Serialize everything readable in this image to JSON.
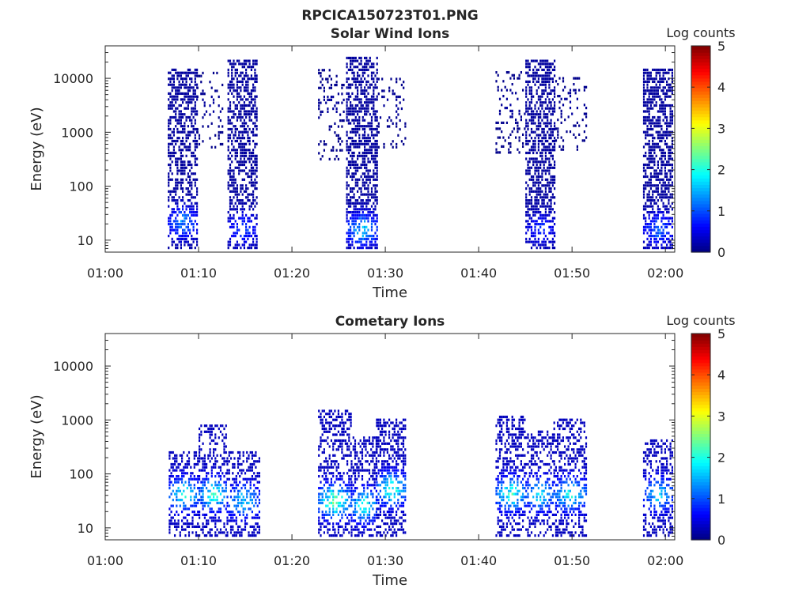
{
  "figure_title": "RPCICA150723T01.PNG",
  "chart_data": [
    {
      "type": "heatmap",
      "title": "Solar Wind Ions",
      "xlabel": "Time",
      "ylabel": "Energy (eV)",
      "x_ticks": [
        "01:00",
        "01:10",
        "01:20",
        "01:30",
        "01:40",
        "01:50",
        "02:00"
      ],
      "x_range_minutes": [
        0,
        61
      ],
      "y_scale": "log",
      "y_ticks": [
        "10",
        "100",
        "1000",
        "10000"
      ],
      "y_range": [
        6,
        40000
      ],
      "colorbar": {
        "label": "Log counts",
        "ticks": [
          "0",
          "1",
          "2",
          "3",
          "4",
          "5"
        ],
        "range": [
          0,
          5
        ],
        "colormap": "jet"
      },
      "bursts": [
        {
          "t0": 6.7,
          "t1": 9.8,
          "emin": 6,
          "emax": 15000,
          "density": 0.55,
          "peak_e": 20,
          "peak_val": 1.6,
          "base_val": 0.15
        },
        {
          "t0": 9.8,
          "t1": 12.6,
          "emin": 500,
          "emax": 15000,
          "density": 0.12,
          "peak_e": 3000,
          "peak_val": 0.2,
          "base_val": 0.05
        },
        {
          "t0": 13.1,
          "t1": 16.2,
          "emin": 6,
          "emax": 20000,
          "density": 0.55,
          "peak_e": 15,
          "peak_val": 1.2,
          "base_val": 0.15
        },
        {
          "t0": 22.8,
          "t1": 25.6,
          "emin": 300,
          "emax": 15000,
          "density": 0.18,
          "peak_e": 3000,
          "peak_val": 0.2,
          "base_val": 0.05
        },
        {
          "t0": 25.8,
          "t1": 29.2,
          "emin": 6,
          "emax": 25000,
          "density": 0.6,
          "peak_e": 15,
          "peak_val": 2.0,
          "base_val": 0.15
        },
        {
          "t0": 29.2,
          "t1": 32.2,
          "emin": 500,
          "emax": 10000,
          "density": 0.15,
          "peak_e": 3000,
          "peak_val": 0.2,
          "base_val": 0.05
        },
        {
          "t0": 41.8,
          "t1": 45.0,
          "emin": 400,
          "emax": 15000,
          "density": 0.18,
          "peak_e": 3000,
          "peak_val": 0.2,
          "base_val": 0.05
        },
        {
          "t0": 45.0,
          "t1": 48.2,
          "emin": 6,
          "emax": 20000,
          "density": 0.6,
          "peak_e": 15,
          "peak_val": 1.0,
          "base_val": 0.15
        },
        {
          "t0": 48.2,
          "t1": 51.5,
          "emin": 400,
          "emax": 10000,
          "density": 0.15,
          "peak_e": 3000,
          "peak_val": 0.2,
          "base_val": 0.05
        },
        {
          "t0": 57.6,
          "t1": 60.8,
          "emin": 6,
          "emax": 15000,
          "density": 0.6,
          "peak_e": 15,
          "peak_val": 1.4,
          "base_val": 0.15
        }
      ]
    },
    {
      "type": "heatmap",
      "title": "Cometary Ions",
      "xlabel": "Time",
      "ylabel": "Energy (eV)",
      "x_ticks": [
        "01:00",
        "01:10",
        "01:20",
        "01:30",
        "01:40",
        "01:50",
        "02:00"
      ],
      "x_range_minutes": [
        0,
        61
      ],
      "y_scale": "log",
      "y_ticks": [
        "10",
        "100",
        "1000",
        "10000"
      ],
      "y_range": [
        6,
        40000
      ],
      "colorbar": {
        "label": "Log counts",
        "ticks": [
          "0",
          "1",
          "2",
          "3",
          "4",
          "5"
        ],
        "range": [
          0,
          5
        ],
        "colormap": "jet"
      },
      "bursts": [
        {
          "t0": 6.8,
          "t1": 10.0,
          "emin": 6,
          "emax": 250,
          "density": 0.45,
          "peak_e": 40,
          "peak_val": 2.4,
          "base_val": 0.3
        },
        {
          "t0": 10.0,
          "t1": 13.0,
          "emin": 6,
          "emax": 800,
          "density": 0.45,
          "peak_e": 40,
          "peak_val": 2.6,
          "base_val": 0.3
        },
        {
          "t0": 13.0,
          "t1": 16.5,
          "emin": 6,
          "emax": 250,
          "density": 0.45,
          "peak_e": 30,
          "peak_val": 2.0,
          "base_val": 0.3
        },
        {
          "t0": 22.8,
          "t1": 26.3,
          "emin": 6,
          "emax": 1500,
          "density": 0.45,
          "peak_e": 30,
          "peak_val": 3.0,
          "base_val": 0.3
        },
        {
          "t0": 26.3,
          "t1": 29.0,
          "emin": 6,
          "emax": 500,
          "density": 0.45,
          "peak_e": 25,
          "peak_val": 2.6,
          "base_val": 0.3
        },
        {
          "t0": 29.0,
          "t1": 32.2,
          "emin": 6,
          "emax": 1000,
          "density": 0.5,
          "peak_e": 50,
          "peak_val": 2.5,
          "base_val": 0.3
        },
        {
          "t0": 41.8,
          "t1": 45.0,
          "emin": 6,
          "emax": 1200,
          "density": 0.45,
          "peak_e": 40,
          "peak_val": 2.6,
          "base_val": 0.3
        },
        {
          "t0": 45.0,
          "t1": 48.0,
          "emin": 6,
          "emax": 600,
          "density": 0.45,
          "peak_e": 40,
          "peak_val": 2.2,
          "base_val": 0.3
        },
        {
          "t0": 48.0,
          "t1": 51.5,
          "emin": 6,
          "emax": 1000,
          "density": 0.45,
          "peak_e": 40,
          "peak_val": 2.3,
          "base_val": 0.3
        },
        {
          "t0": 57.6,
          "t1": 60.8,
          "emin": 6,
          "emax": 400,
          "density": 0.45,
          "peak_e": 40,
          "peak_val": 2.0,
          "base_val": 0.3
        }
      ]
    }
  ]
}
